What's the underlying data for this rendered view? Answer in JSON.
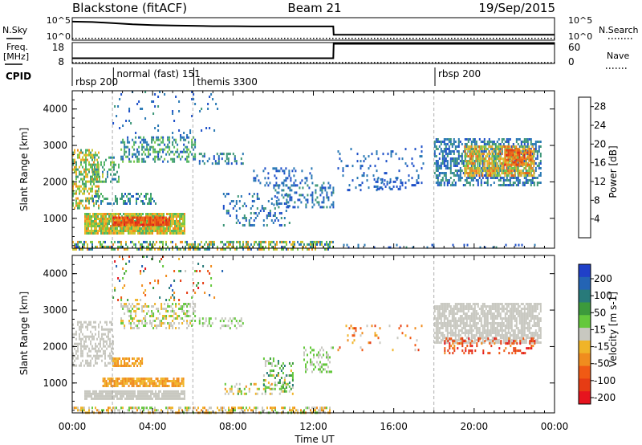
{
  "header": {
    "radar": "Blackstone (fitACF)",
    "beam": "Beam 21",
    "date": "19/Sep/2015"
  },
  "colors": {
    "power": [
      "#1432ff",
      "#1e50c8",
      "#2878b4",
      "#3c9678",
      "#50b464",
      "#78c846",
      "#c8c832",
      "#f0b428",
      "#f08c1e",
      "#f06414",
      "#e03c14",
      "#e6141e"
    ],
    "velocity": [
      "#2040c8",
      "#2464b4",
      "#287a7a",
      "#3c9a3c",
      "#64c83c",
      "#c8c8c0",
      "#f0b428",
      "#f08c1e",
      "#f05a14",
      "#e63c14",
      "#e6141e"
    ],
    "scan_line": "#000000",
    "mode_divider": "#999999"
  },
  "chart_data": [
    {
      "type": "line",
      "name": "N.Sky / N.Search",
      "left_label": "N.Sky",
      "right_label": "N.Search",
      "left_ticks": [
        "10^5",
        "10^0"
      ],
      "right_ticks": [
        "10^5",
        "10^0"
      ],
      "series": [
        {
          "name": "N.Sky",
          "style": "solid",
          "x": [
            0,
            1,
            2,
            3,
            4,
            5,
            6,
            7,
            8,
            9,
            10,
            11,
            12,
            12.99,
            13.01,
            14,
            16,
            18,
            20,
            22,
            24
          ],
          "y": [
            0.85,
            0.83,
            0.78,
            0.72,
            0.68,
            0.66,
            0.65,
            0.63,
            0.63,
            0.62,
            0.62,
            0.62,
            0.62,
            0.62,
            0.22,
            0.22,
            0.22,
            0.22,
            0.22,
            0.22,
            0.22
          ]
        },
        {
          "name": "N.Search",
          "style": "dotted",
          "x": [
            0,
            2,
            4,
            6,
            8,
            10,
            12,
            14,
            16,
            18,
            20,
            22,
            24
          ],
          "y": [
            0.05,
            0.05,
            0.05,
            0.05,
            0.05,
            0.05,
            0.05,
            0.05,
            0.05,
            0.05,
            0.05,
            0.05,
            0.05
          ]
        }
      ]
    },
    {
      "type": "line",
      "name": "Freq. / Nave",
      "left_label_lines": [
        "Freq.",
        "[MHz]"
      ],
      "right_label": "Nave",
      "left_ticks": [
        "18",
        "8"
      ],
      "right_ticks": [
        "60",
        "0"
      ],
      "series": [
        {
          "name": "Freq.",
          "style": "solid",
          "x": [
            0,
            12.99,
            13.01,
            24
          ],
          "y": [
            10.3,
            10.3,
            17.8,
            17.8
          ],
          "ylim": [
            8,
            18
          ]
        },
        {
          "name": "Nave",
          "style": "dotted",
          "x": [
            0,
            24
          ],
          "y": [
            0,
            0
          ],
          "ylim": [
            0,
            60
          ]
        }
      ]
    },
    {
      "type": "table",
      "name": "CPID",
      "label": "CPID",
      "entries": [
        {
          "start": 0.0,
          "text": "rbsp 200",
          "row": 1
        },
        {
          "start": 2.05,
          "text": "normal (fast) 151",
          "row": 0
        },
        {
          "start": 6.05,
          "text": "themis 3300",
          "row": 1
        },
        {
          "start": 18.05,
          "text": "rbsp 200",
          "row": 0
        }
      ],
      "dividers": [
        2.0,
        6.0,
        18.0
      ]
    },
    {
      "type": "heatmap",
      "name": "Power",
      "ylabel": "Slant Range [km]",
      "xlim": [
        0,
        24
      ],
      "ylim": [
        180,
        4500
      ],
      "yticks": [
        1000,
        2000,
        3000,
        4000
      ],
      "colorbar": {
        "label": "Power [dB]",
        "ticks": [
          4,
          8,
          12,
          16,
          20,
          24,
          28
        ],
        "range": [
          0,
          30
        ]
      },
      "regions": [
        {
          "t": [
            0.6,
            5.6
          ],
          "r": [
            600,
            1150
          ],
          "v": [
            10,
            22
          ],
          "d": 0.9
        },
        {
          "t": [
            2.0,
            4.8
          ],
          "r": [
            800,
            1050
          ],
          "v": [
            22,
            28
          ],
          "d": 0.9
        },
        {
          "t": [
            0.0,
            1.3
          ],
          "r": [
            1300,
            2900
          ],
          "v": [
            8,
            22
          ],
          "d": 0.55
        },
        {
          "t": [
            1.0,
            2.3
          ],
          "r": [
            2000,
            2700
          ],
          "v": [
            6,
            16
          ],
          "d": 0.4
        },
        {
          "t": [
            1.0,
            4.2
          ],
          "r": [
            1400,
            1700
          ],
          "v": [
            4,
            12
          ],
          "d": 0.35
        },
        {
          "t": [
            2.4,
            6.1
          ],
          "r": [
            2550,
            3250
          ],
          "v": [
            4,
            14
          ],
          "d": 0.45
        },
        {
          "t": [
            6.3,
            8.5
          ],
          "r": [
            2500,
            2800
          ],
          "v": [
            3,
            10
          ],
          "d": 0.3
        },
        {
          "t": [
            2.0,
            7.5
          ],
          "r": [
            3300,
            4500
          ],
          "v": [
            3,
            8
          ],
          "d": 0.04
        },
        {
          "t": [
            7.5,
            10.8
          ],
          "r": [
            800,
            1700
          ],
          "v": [
            3,
            9
          ],
          "d": 0.2
        },
        {
          "t": [
            10.0,
            13.0
          ],
          "r": [
            1300,
            2000
          ],
          "v": [
            3,
            10
          ],
          "d": 0.3
        },
        {
          "t": [
            9.0,
            12.0
          ],
          "r": [
            1900,
            2400
          ],
          "v": [
            3,
            7
          ],
          "d": 0.15
        },
        {
          "t": [
            13.2,
            17.5
          ],
          "r": [
            1800,
            3000
          ],
          "v": [
            3,
            7
          ],
          "d": 0.09
        },
        {
          "t": [
            15.0,
            16.3
          ],
          "r": [
            1800,
            2100
          ],
          "v": [
            3,
            8
          ],
          "d": 0.3
        },
        {
          "t": [
            18.0,
            23.3
          ],
          "r": [
            1900,
            3200
          ],
          "v": [
            3,
            10
          ],
          "d": 0.55
        },
        {
          "t": [
            19.5,
            23.0
          ],
          "r": [
            2200,
            3000
          ],
          "v": [
            12,
            24
          ],
          "d": 0.7
        },
        {
          "t": [
            21.5,
            22.8
          ],
          "r": [
            2500,
            2900
          ],
          "v": [
            20,
            28
          ],
          "d": 0.6
        },
        {
          "t": [
            0.0,
            13.0
          ],
          "r": [
            180,
            380
          ],
          "v": [
            4,
            22
          ],
          "d": 0.5
        },
        {
          "t": [
            13.0,
            24.0
          ],
          "r": [
            180,
            300
          ],
          "v": [
            3,
            8
          ],
          "d": 0.1
        }
      ]
    },
    {
      "type": "heatmap",
      "name": "Velocity",
      "ylabel": "Slant Range [km]",
      "xlabel": "Time UT",
      "xlim": [
        0,
        24
      ],
      "ylim": [
        180,
        4500
      ],
      "yticks": [
        1000,
        2000,
        3000,
        4000
      ],
      "xticks": [
        0,
        4,
        8,
        12,
        16,
        20,
        24
      ],
      "xtick_labels": [
        "00:00",
        "04:00",
        "08:00",
        "12:00",
        "16:00",
        "20:00",
        "00:00"
      ],
      "colorbar": {
        "label": "Velocity [m s-1]",
        "ticks": [
          200,
          100,
          50,
          15,
          -15,
          -50,
          -100,
          -200
        ]
      },
      "regions": [
        {
          "t": [
            0.6,
            5.6
          ],
          "r": [
            550,
            800
          ],
          "v": [
            5,
            5
          ],
          "d": 0.9
        },
        {
          "t": [
            1.5,
            5.5
          ],
          "r": [
            900,
            1150
          ],
          "v": [
            6,
            7
          ],
          "d": 0.85
        },
        {
          "t": [
            0.0,
            2.0
          ],
          "r": [
            1500,
            2700
          ],
          "v": [
            5,
            5
          ],
          "d": 0.5
        },
        {
          "t": [
            2.0,
            3.5
          ],
          "r": [
            1450,
            1700
          ],
          "v": [
            6,
            7
          ],
          "d": 0.7
        },
        {
          "t": [
            2.4,
            6.1
          ],
          "r": [
            2500,
            3200
          ],
          "v": [
            4,
            6
          ],
          "d": 0.4
        },
        {
          "t": [
            6.3,
            8.5
          ],
          "r": [
            2500,
            2800
          ],
          "v": [
            4,
            5
          ],
          "d": 0.3
        },
        {
          "t": [
            7.5,
            11.0
          ],
          "r": [
            700,
            1000
          ],
          "v": [
            3,
            7
          ],
          "d": 0.25
        },
        {
          "t": [
            9.5,
            11.0
          ],
          "r": [
            900,
            1700
          ],
          "v": [
            2,
            6
          ],
          "d": 0.3
        },
        {
          "t": [
            11.5,
            13.0
          ],
          "r": [
            1300,
            2000
          ],
          "v": [
            4,
            5
          ],
          "d": 0.35
        },
        {
          "t": [
            13.2,
            17.5
          ],
          "r": [
            1900,
            2600
          ],
          "v": [
            5,
            9
          ],
          "d": 0.1
        },
        {
          "t": [
            18.0,
            23.3
          ],
          "r": [
            2100,
            3200
          ],
          "v": [
            5,
            5
          ],
          "d": 0.75
        },
        {
          "t": [
            18.5,
            23.0
          ],
          "r": [
            1850,
            2250
          ],
          "v": [
            7,
            10
          ],
          "d": 0.3
        },
        {
          "t": [
            0.0,
            13.0
          ],
          "r": [
            180,
            350
          ],
          "v": [
            4,
            7
          ],
          "d": 0.5
        },
        {
          "t": [
            2.0,
            7.5
          ],
          "r": [
            3300,
            4500
          ],
          "v": [
            0,
            10
          ],
          "d": 0.05
        }
      ]
    }
  ]
}
